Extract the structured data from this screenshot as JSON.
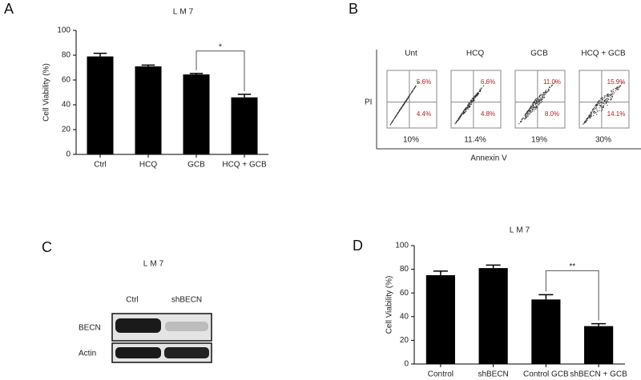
{
  "chart_data": [
    {
      "type": "bar",
      "panel_label": "A",
      "title": "LM7",
      "y_label": "Cell Viability (%)",
      "categories": [
        "Ctrl",
        "HCQ",
        "GCB",
        "HCQ + GCB"
      ],
      "values": [
        79,
        71,
        64.5,
        46
      ],
      "errors": [
        2.5,
        1,
        0.8,
        2.5
      ],
      "color": "#000000",
      "ylim": [
        0,
        100
      ],
      "yticks": [
        0,
        20,
        40,
        60,
        80,
        100
      ],
      "annotation": "*"
    },
    {
      "type": "bar",
      "panel_label": "D",
      "title": "LM7",
      "y_label": "Cell Viability (%)",
      "categories": [
        "Control",
        "shBECN",
        "Control GCB",
        "shBECN + GCB"
      ],
      "values": [
        75,
        81,
        54.5,
        32
      ],
      "errors": [
        3.5,
        2.5,
        4,
        2
      ],
      "color": "#000000",
      "ylim": [
        0,
        100
      ],
      "yticks": [
        0,
        20,
        40,
        60,
        80,
        100
      ],
      "annotation": "**"
    }
  ],
  "flow_panel": {
    "panel_label": "B",
    "y_label": "PI",
    "x_label": "Annexin V",
    "conditions": [
      "Unt",
      "HCQ",
      "GCB",
      "HCQ + GCB"
    ],
    "upper_right": [
      "5.6%",
      "6.6%",
      "11.0%",
      "15.9%"
    ],
    "lower_right": [
      "4.4%",
      "4.8%",
      "8.0%",
      "14.1%"
    ],
    "totals": [
      "10%",
      "11.4%",
      "19%",
      "30%"
    ]
  },
  "blot_panel": {
    "panel_label": "C",
    "title": "LM7",
    "lanes": [
      "Ctrl",
      "shBECN"
    ],
    "rows": [
      "BECN",
      "Actin"
    ]
  }
}
